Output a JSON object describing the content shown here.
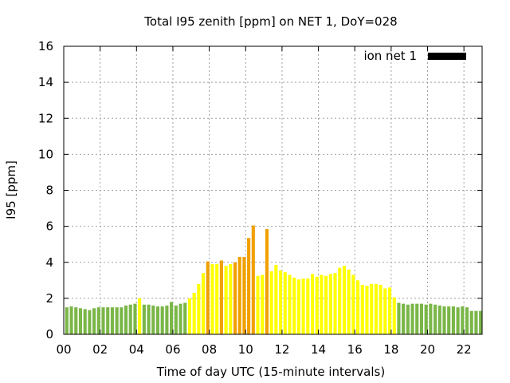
{
  "chart_data": {
    "type": "bar",
    "title": "Total I95 zenith [ppm] on NET 1, DoY=028",
    "xlabel": "Time of day UTC (15-minute intervals)",
    "ylabel": "I95 [ppm]",
    "ylim": [
      0,
      16
    ],
    "yticks": [
      "0",
      "2",
      "4",
      "6",
      "8",
      "10",
      "12",
      "14",
      "16"
    ],
    "xlim": [
      0,
      23
    ],
    "xticks": [
      "00",
      "02",
      "04",
      "06",
      "08",
      "10",
      "12",
      "14",
      "16",
      "18",
      "20",
      "22"
    ],
    "grid": true,
    "legend": {
      "placement": "top-right",
      "entries": [
        {
          "name": "ion net 1",
          "color": "#000000"
        }
      ]
    },
    "colors": {
      "low": "#7ab648",
      "medium": "#ffff00",
      "high": "#f0a000",
      "frame": "#000000",
      "grid": "#a0a0a0"
    },
    "categories": [
      "00:00",
      "00:15",
      "00:30",
      "00:45",
      "01:00",
      "01:15",
      "01:30",
      "01:45",
      "02:00",
      "02:15",
      "02:30",
      "02:45",
      "03:00",
      "03:15",
      "03:30",
      "03:45",
      "04:00",
      "04:15",
      "04:30",
      "04:45",
      "05:00",
      "05:15",
      "05:30",
      "05:45",
      "06:00",
      "06:15",
      "06:30",
      "06:45",
      "07:00",
      "07:15",
      "07:30",
      "07:45",
      "08:00",
      "08:15",
      "08:30",
      "08:45",
      "09:00",
      "09:15",
      "09:30",
      "09:45",
      "10:00",
      "10:15",
      "10:30",
      "10:45",
      "11:00",
      "11:15",
      "11:30",
      "11:45",
      "12:00",
      "12:15",
      "12:30",
      "12:45",
      "13:00",
      "13:15",
      "13:30",
      "13:45",
      "14:00",
      "14:15",
      "14:30",
      "14:45",
      "15:00",
      "15:15",
      "15:30",
      "15:45",
      "16:00",
      "16:15",
      "16:30",
      "16:45",
      "17:00",
      "17:15",
      "17:30",
      "17:45",
      "18:00",
      "18:15",
      "18:30",
      "18:45",
      "19:00",
      "19:15",
      "19:30",
      "19:45",
      "20:00",
      "20:15",
      "20:30",
      "20:45",
      "21:00",
      "21:15",
      "21:30",
      "21:45",
      "22:00",
      "22:15",
      "22:30",
      "22:45"
    ],
    "values": [
      1.5,
      1.55,
      1.5,
      1.45,
      1.4,
      1.35,
      1.45,
      1.5,
      1.5,
      1.5,
      1.5,
      1.5,
      1.5,
      1.6,
      1.65,
      1.7,
      2.0,
      1.65,
      1.65,
      1.6,
      1.55,
      1.55,
      1.6,
      1.8,
      1.6,
      1.7,
      1.75,
      2.0,
      2.3,
      2.8,
      3.4,
      4.05,
      3.9,
      3.9,
      4.1,
      3.8,
      3.9,
      4.0,
      4.3,
      4.3,
      5.35,
      6.05,
      3.25,
      3.3,
      5.85,
      3.5,
      3.85,
      3.55,
      3.45,
      3.3,
      3.15,
      3.05,
      3.1,
      3.1,
      3.35,
      3.2,
      3.3,
      3.25,
      3.35,
      3.4,
      3.7,
      3.8,
      3.6,
      3.3,
      3.0,
      2.75,
      2.7,
      2.8,
      2.8,
      2.75,
      2.55,
      2.6,
      2.05,
      1.75,
      1.7,
      1.65,
      1.7,
      1.7,
      1.7,
      1.65,
      1.7,
      1.65,
      1.6,
      1.55,
      1.55,
      1.55,
      1.5,
      1.55,
      1.5,
      1.3,
      1.3,
      1.3
    ]
  }
}
